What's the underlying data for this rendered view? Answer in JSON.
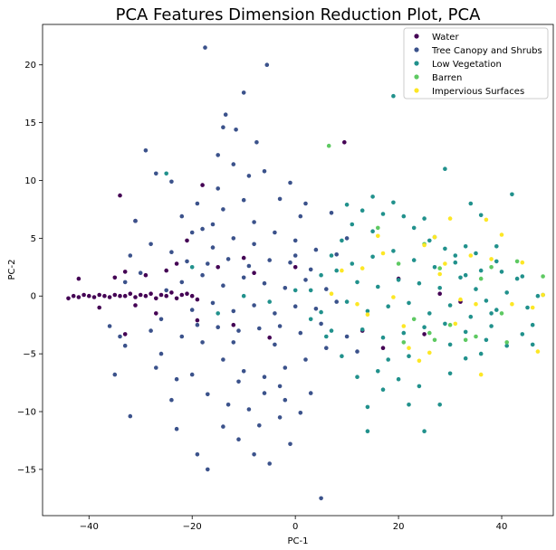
{
  "chart_data": {
    "type": "scatter",
    "title": "PCA Features Dimension Reduction Plot, PCA",
    "xlabel": "PC-1",
    "ylabel": "PC-2",
    "xlim": [
      -49,
      50
    ],
    "ylim": [
      -19,
      23.5
    ],
    "xticks": [
      -40,
      -20,
      0,
      20,
      40
    ],
    "yticks": [
      -15,
      -10,
      -5,
      0,
      5,
      10,
      15,
      20
    ],
    "grid": false,
    "legend_position": "top-right",
    "series": [
      {
        "name": "Water",
        "color": "#440154",
        "points": [
          [
            -44,
            -0.2
          ],
          [
            -43,
            0
          ],
          [
            -42,
            -0.1
          ],
          [
            -41,
            0.1
          ],
          [
            -40,
            0
          ],
          [
            -39,
            -0.1
          ],
          [
            -38,
            0.1
          ],
          [
            -37,
            0
          ],
          [
            -36,
            -0.1
          ],
          [
            -35,
            0.1
          ],
          [
            -34,
            0
          ],
          [
            -33,
            0
          ],
          [
            -32,
            0.2
          ],
          [
            -31,
            -0.1
          ],
          [
            -30,
            0.1
          ],
          [
            -29,
            0
          ],
          [
            -28,
            0.2
          ],
          [
            -27,
            -0.2
          ],
          [
            -26,
            0.1
          ],
          [
            -25,
            0
          ],
          [
            -24,
            0.3
          ],
          [
            -23,
            -0.2
          ],
          [
            -22,
            0.1
          ],
          [
            -21,
            0.2
          ],
          [
            -20,
            0
          ],
          [
            -19,
            -0.3
          ],
          [
            -42,
            1.5
          ],
          [
            -38,
            -1
          ],
          [
            -35,
            1.6
          ],
          [
            -33,
            2.1
          ],
          [
            -31,
            -0.8
          ],
          [
            -29,
            1.8
          ],
          [
            -27,
            -1.5
          ],
          [
            -25,
            2.2
          ],
          [
            -23,
            2.8
          ],
          [
            -34,
            8.7
          ],
          [
            -31,
            6.5
          ],
          [
            -33,
            -3.3
          ],
          [
            -21,
            4.8
          ],
          [
            -19,
            -2.1
          ],
          [
            -15,
            2.5
          ],
          [
            -12,
            -2.5
          ],
          [
            -10,
            3.3
          ],
          [
            -8,
            2
          ],
          [
            0,
            2.5
          ],
          [
            9.5,
            13.3
          ],
          [
            13,
            -3
          ],
          [
            17,
            -4.5
          ],
          [
            20,
            1.5
          ],
          [
            25,
            -3.3
          ],
          [
            28,
            0.2
          ],
          [
            32,
            -0.5
          ],
          [
            -18,
            9.6
          ],
          [
            -5,
            -3.6
          ]
        ]
      },
      {
        "name": "Tree Canopy and Shrubs",
        "color": "#3b528b",
        "points": [
          [
            -17.5,
            21.5
          ],
          [
            -5.5,
            20
          ],
          [
            -10,
            17.6
          ],
          [
            -13.5,
            15.7
          ],
          [
            -29,
            12.6
          ],
          [
            -14,
            14.6
          ],
          [
            -11.5,
            14.4
          ],
          [
            -7.5,
            13.3
          ],
          [
            -31,
            6.5
          ],
          [
            -27,
            10.6
          ],
          [
            -24,
            9.9
          ],
          [
            -19,
            8
          ],
          [
            -15,
            9.3
          ],
          [
            -12,
            11.4
          ],
          [
            -9,
            10.4
          ],
          [
            -6,
            10.8
          ],
          [
            -3,
            8.4
          ],
          [
            -1,
            9.8
          ],
          [
            2,
            8
          ],
          [
            -34,
            -3.5
          ],
          [
            -35,
            -6.8
          ],
          [
            -33,
            -4.3
          ],
          [
            -32,
            -10.4
          ],
          [
            -28,
            -3
          ],
          [
            -26,
            -5
          ],
          [
            -23,
            -7.2
          ],
          [
            -23,
            -11.5
          ],
          [
            -19,
            -13.7
          ],
          [
            -17,
            -15
          ],
          [
            -14,
            -11.3
          ],
          [
            -11,
            -12.4
          ],
          [
            -8,
            -13.7
          ],
          [
            -5,
            -14.5
          ],
          [
            -3,
            -10.5
          ],
          [
            -1,
            -12.8
          ],
          [
            1,
            -10.1
          ],
          [
            5,
            -17.5
          ],
          [
            -30,
            2
          ],
          [
            -28,
            4.5
          ],
          [
            -26,
            -2
          ],
          [
            -24,
            3.8
          ],
          [
            -22,
            -3.5
          ],
          [
            -20,
            5.5
          ],
          [
            -18,
            -4
          ],
          [
            -16,
            6.2
          ],
          [
            -14,
            -5.5
          ],
          [
            -12,
            5
          ],
          [
            -10,
            -6.5
          ],
          [
            -8,
            6.4
          ],
          [
            -6,
            -7
          ],
          [
            -4,
            5.5
          ],
          [
            -2,
            -6.2
          ],
          [
            0,
            4.8
          ],
          [
            2,
            -5.5
          ],
          [
            4,
            4
          ],
          [
            6,
            -4.5
          ],
          [
            8,
            3.6
          ],
          [
            10,
            -3.5
          ],
          [
            -25,
            0.5
          ],
          [
            -22,
            1.2
          ],
          [
            -20,
            -1.2
          ],
          [
            -18,
            1.8
          ],
          [
            -16,
            -0.6
          ],
          [
            -14,
            0.9
          ],
          [
            -12,
            -1.3
          ],
          [
            -10,
            1.6
          ],
          [
            -8,
            -0.8
          ],
          [
            -6,
            1.1
          ],
          [
            -4,
            -1.5
          ],
          [
            -2,
            0.7
          ],
          [
            0,
            -0.9
          ],
          [
            2,
            1.4
          ],
          [
            4,
            -1.1
          ],
          [
            6,
            0.6
          ],
          [
            8,
            -0.5
          ],
          [
            -21,
            3
          ],
          [
            -19,
            -2.5
          ],
          [
            -17,
            2.8
          ],
          [
            -15,
            -2.7
          ],
          [
            -13,
            3.2
          ],
          [
            -11,
            -3
          ],
          [
            -9,
            2.6
          ],
          [
            -7,
            -2.8
          ],
          [
            -5,
            3.1
          ],
          [
            -3,
            -2.6
          ],
          [
            -1,
            2.9
          ],
          [
            1,
            -3.2
          ],
          [
            3,
            2.3
          ],
          [
            5,
            -2.4
          ],
          [
            -16,
            4.2
          ],
          [
            -12,
            -4
          ],
          [
            -8,
            4.5
          ],
          [
            -4,
            -4.2
          ],
          [
            0,
            3.5
          ],
          [
            -14,
            7.5
          ],
          [
            -10,
            8.3
          ],
          [
            -6,
            -8.4
          ],
          [
            -2,
            -9
          ],
          [
            -20,
            -6.8
          ],
          [
            -17,
            -8.5
          ],
          [
            -13,
            -9.4
          ],
          [
            -9,
            -9.8
          ],
          [
            -24,
            -9
          ],
          [
            -27,
            -6.2
          ],
          [
            -15,
            12.2
          ],
          [
            -11,
            -7.4
          ],
          [
            -7,
            -11.2
          ],
          [
            -3,
            -7.8
          ],
          [
            1,
            6.9
          ],
          [
            3,
            -8.4
          ],
          [
            7,
            7.2
          ],
          [
            10,
            5
          ],
          [
            12,
            -4.8
          ],
          [
            -22,
            6.9
          ],
          [
            -18,
            5.8
          ],
          [
            -32,
            3.5
          ],
          [
            -36,
            -2.6
          ],
          [
            -33,
            1.2
          ]
        ]
      },
      {
        "name": "Low Vegetation",
        "color": "#21918c",
        "points": [
          [
            19,
            17.3
          ],
          [
            29,
            11
          ],
          [
            42,
            8.8
          ],
          [
            36,
            7
          ],
          [
            33,
            4.3
          ],
          [
            39,
            3
          ],
          [
            44,
            1.7
          ],
          [
            47,
            0
          ],
          [
            48,
            0.1
          ],
          [
            46,
            -2.5
          ],
          [
            44,
            -3.3
          ],
          [
            41,
            -4.3
          ],
          [
            38,
            -1.5
          ],
          [
            36,
            -5
          ],
          [
            33,
            -5.4
          ],
          [
            30,
            -6.7
          ],
          [
            28,
            -9.4
          ],
          [
            25,
            -11.7
          ],
          [
            22,
            -9.4
          ],
          [
            20,
            -7.2
          ],
          [
            17,
            -8.1
          ],
          [
            14,
            -9.6
          ],
          [
            12,
            -7
          ],
          [
            9,
            -5.2
          ],
          [
            7,
            -3
          ],
          [
            5,
            -1.4
          ],
          [
            3,
            0.5
          ],
          [
            5,
            1.8
          ],
          [
            7,
            3.5
          ],
          [
            9,
            4.8
          ],
          [
            11,
            6.2
          ],
          [
            13,
            7.4
          ],
          [
            15,
            8.6
          ],
          [
            17,
            7.1
          ],
          [
            19,
            8.1
          ],
          [
            21,
            6.9
          ],
          [
            23,
            5.9
          ],
          [
            25,
            6.7
          ],
          [
            27,
            5.1
          ],
          [
            29,
            4.1
          ],
          [
            31,
            3.5
          ],
          [
            33,
            1.8
          ],
          [
            35,
            0.6
          ],
          [
            37,
            -0.4
          ],
          [
            39,
            -1.2
          ],
          [
            41,
            0.3
          ],
          [
            43,
            1.5
          ],
          [
            45,
            -1
          ],
          [
            10,
            -0.5
          ],
          [
            12,
            1.2
          ],
          [
            14,
            -1.3
          ],
          [
            16,
            0.8
          ],
          [
            18,
            -0.9
          ],
          [
            20,
            1.4
          ],
          [
            22,
            -0.6
          ],
          [
            24,
            1.1
          ],
          [
            26,
            -1.5
          ],
          [
            28,
            0.7
          ],
          [
            30,
            -0.8
          ],
          [
            32,
            1.6
          ],
          [
            34,
            -1.8
          ],
          [
            36,
            2.2
          ],
          [
            38,
            -2.6
          ],
          [
            40,
            2.1
          ],
          [
            11,
            2.8
          ],
          [
            13,
            -2.9
          ],
          [
            15,
            3.4
          ],
          [
            17,
            -3.6
          ],
          [
            19,
            3.9
          ],
          [
            21,
            -3.2
          ],
          [
            23,
            3.1
          ],
          [
            25,
            -2.7
          ],
          [
            27,
            2.5
          ],
          [
            29,
            -2.4
          ],
          [
            31,
            2.9
          ],
          [
            33,
            -3.1
          ],
          [
            35,
            3.7
          ],
          [
            37,
            -3.8
          ],
          [
            39,
            4.3
          ],
          [
            15,
            5.6
          ],
          [
            18,
            -5.5
          ],
          [
            22,
            -5.2
          ],
          [
            26,
            4.8
          ],
          [
            30,
            -4.2
          ],
          [
            24,
            -7.8
          ],
          [
            16,
            -6.5
          ],
          [
            -25,
            10.6
          ],
          [
            -20,
            2.5
          ],
          [
            -15,
            -1.5
          ],
          [
            -10,
            0
          ],
          [
            -5,
            -0.5
          ],
          [
            0,
            0.5
          ],
          [
            3,
            -2
          ],
          [
            6,
            -3.5
          ],
          [
            8,
            2.2
          ],
          [
            10,
            7.9
          ],
          [
            14,
            -11.7
          ],
          [
            46,
            -4.2
          ],
          [
            34,
            8
          ]
        ]
      },
      {
        "name": "Barren",
        "color": "#5ec962",
        "points": [
          [
            6.5,
            13
          ],
          [
            16,
            5.9
          ],
          [
            20,
            2.8
          ],
          [
            23,
            -2
          ],
          [
            26,
            -3.2
          ],
          [
            28,
            2.4
          ],
          [
            30,
            -2.5
          ],
          [
            33,
            -3.8
          ],
          [
            36,
            1.5
          ],
          [
            38,
            2.5
          ],
          [
            40,
            -1.5
          ],
          [
            43,
            3
          ],
          [
            48,
            1.7
          ],
          [
            25,
            4.5
          ],
          [
            21,
            -4
          ],
          [
            27,
            -3.8
          ],
          [
            35,
            -3.5
          ],
          [
            41,
            -4
          ]
        ]
      },
      {
        "name": "Impervious Surfaces",
        "color": "#fde725",
        "points": [
          [
            30,
            6.7
          ],
          [
            37,
            6.6
          ],
          [
            40,
            5.3
          ],
          [
            44,
            2.9
          ],
          [
            48,
            0.1
          ],
          [
            46,
            -1
          ],
          [
            47,
            -4.8
          ],
          [
            42,
            -0.7
          ],
          [
            38,
            3.2
          ],
          [
            35,
            -0.7
          ],
          [
            34,
            3.5
          ],
          [
            32,
            -0.3
          ],
          [
            29,
            2.8
          ],
          [
            27,
            5.1
          ],
          [
            25,
            4.4
          ],
          [
            24,
            -5.6
          ],
          [
            22,
            -4.5
          ],
          [
            21,
            -2.6
          ],
          [
            19,
            -0.1
          ],
          [
            17,
            3.7
          ],
          [
            16,
            5.2
          ],
          [
            14,
            -1.6
          ],
          [
            13,
            2.4
          ],
          [
            12,
            -0.7
          ],
          [
            9,
            2.2
          ],
          [
            7,
            0.2
          ],
          [
            26,
            -4.9
          ],
          [
            31,
            -2.4
          ],
          [
            36,
            -6.8
          ],
          [
            28,
            1.9
          ]
        ]
      }
    ]
  }
}
